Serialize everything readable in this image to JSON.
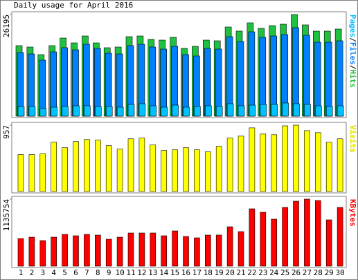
{
  "chart_data": {
    "type": "bar",
    "title": "Daily usage for April 2016",
    "categories": [
      "1",
      "2",
      "3",
      "4",
      "5",
      "6",
      "7",
      "8",
      "9",
      "10",
      "11",
      "12",
      "13",
      "14",
      "15",
      "16",
      "17",
      "18",
      "19",
      "20",
      "21",
      "22",
      "23",
      "24",
      "25",
      "26",
      "27",
      "28",
      "29",
      "30"
    ],
    "category_colors": [
      "#000000",
      "#008000",
      "#008000",
      "#000000",
      "#000000",
      "#000000",
      "#000000",
      "#000000",
      "#008000",
      "#008000",
      "#000000",
      "#000000",
      "#000000",
      "#000000",
      "#000000",
      "#008000",
      "#008000",
      "#000000",
      "#000000",
      "#000000",
      "#000000",
      "#000000",
      "#008000",
      "#008000",
      "#000000",
      "#000000",
      "#000000",
      "#000000",
      "#000000",
      "#008000"
    ],
    "legend_separator": "/",
    "panels": [
      {
        "ylim": [
          0,
          26195
        ],
        "yticks": [
          26195
        ],
        "series": [
          {
            "name": "Pages",
            "color": "#00c0ff",
            "values": [
              2495,
              2495,
              1960,
              2317,
              2495,
              2672,
              2672,
              2495,
              2495,
              2317,
              3029,
              3208,
              2672,
              2317,
              2851,
              2317,
              2495,
              2672,
              2495,
              3208,
              2672,
              2851,
              3029,
              3029,
              3386,
              3208,
              3029,
              2672,
              2495,
              2672
            ]
          },
          {
            "name": "Files",
            "color": "#0080ff",
            "values": [
              16394,
              16038,
              14434,
              16573,
              17642,
              17107,
              18533,
              17464,
              16216,
              16038,
              18176,
              18533,
              17820,
              17285,
              17998,
              15860,
              15503,
              17464,
              17285,
              20493,
              19246,
              21740,
              20315,
              20671,
              21028,
              22810,
              20849,
              19067,
              19067,
              19424
            ]
          },
          {
            "name": "Hits",
            "color": "#20c040",
            "values": [
              18176,
              17820,
              15860,
              18176,
              20137,
              18889,
              20671,
              18889,
              17642,
              17820,
              20493,
              20671,
              19780,
              19602,
              20315,
              17464,
              17998,
              19602,
              19424,
              22988,
              21919,
              24057,
              22632,
              23344,
              23701,
              26195,
              23523,
              21919,
              21919,
              22453
            ]
          }
        ]
      },
      {
        "ylim": [
          0,
          957
        ],
        "yticks": [
          957
        ],
        "series": [
          {
            "name": "Visits",
            "color": "#ffff00",
            "values": [
              533,
              533,
              543,
              711,
              632,
              721,
              750,
              740,
              661,
              612,
              760,
              770,
              671,
              592,
              602,
              632,
              602,
              572,
              651,
              770,
              799,
              918,
              829,
              819,
              947,
              957,
              878,
              849,
              711,
              760
            ]
          }
        ]
      },
      {
        "ylim": [
          0,
          1135754
        ],
        "yticks": [
          1135754
        ],
        "series": [
          {
            "name": "KBytes",
            "color": "#ff0000",
            "values": [
              468360,
              491778,
              433233,
              491778,
              538614,
              515196,
              538614,
              526905,
              456651,
              491778,
              562032,
              562032,
              562032,
              515196,
              597159,
              503487,
              480069,
              526905,
              526905,
              667413,
              585450,
              971847,
              913302,
              796212,
              995265,
              1100646,
              1135754,
              1112355,
              784503,
              995265
            ]
          }
        ]
      }
    ]
  }
}
